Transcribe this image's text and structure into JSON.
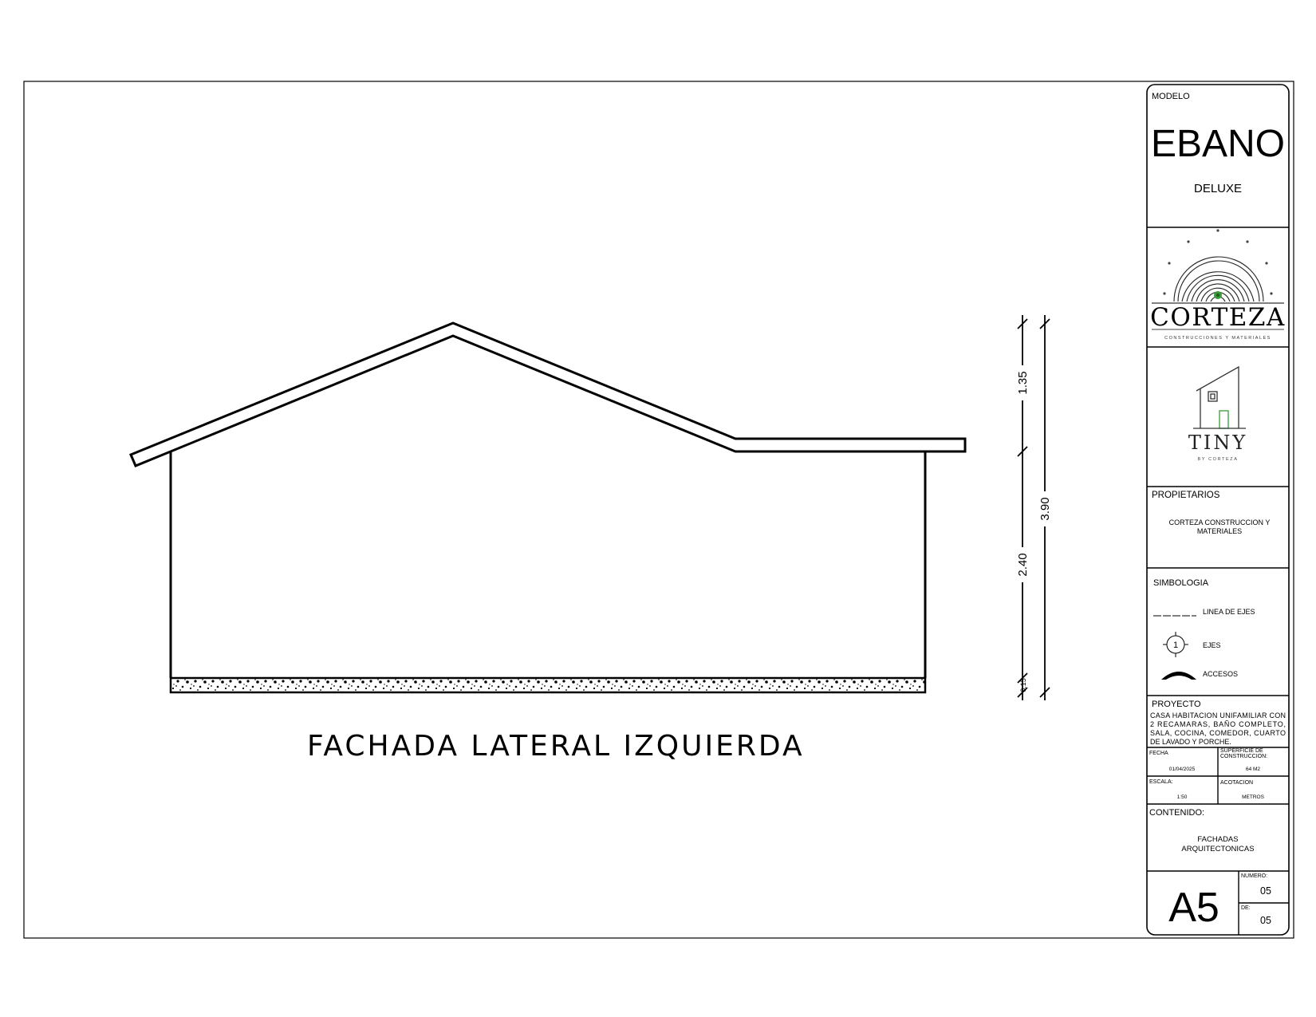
{
  "drawing": {
    "title": "FACHADA LATERAL IZQUIERDA",
    "dimensions": {
      "roof_height": "1.35",
      "wall_height": "2.40",
      "total_height": "3.90",
      "slab_thickness": "0.15"
    }
  },
  "title_block": {
    "modelo_label": "MODELO",
    "model_name": "EBANO",
    "model_variant": "DELUXE",
    "logos": {
      "corteza": {
        "icon": "tree-rings-logo",
        "name": "CORTEZA",
        "tagline": "CONSTRUCCIONES Y MATERIALES"
      },
      "tiny": {
        "icon": "tiny-house-logo",
        "name": "TINY",
        "tagline": "BY CORTEZA"
      }
    },
    "propietarios_label": "PROPIETARIOS",
    "propietarios_line1": "CORTEZA CONSTRUCCION Y",
    "propietarios_line2": "MATERIALES",
    "simbologia_label": "SIMBOLOGIA",
    "symbols": {
      "ejes_line": "LINEA DE EJES",
      "ejes": "EJES",
      "ejes_number": "1",
      "accesos": "ACCESOS"
    },
    "proyecto_label": "PROYECTO",
    "proyecto_lines": [
      "CASA HABITACION UNIFAMILIAR CON",
      "2 RECAMARAS, BAÑO COMPLETO,",
      "SALA, COCINA, COMEDOR, CUARTO",
      "DE LAVADO Y PORCHE."
    ],
    "fecha_label": "FECHA",
    "fecha_value": "01/04/2025",
    "superficie_label_1": "SUPERFICIE DE",
    "superficie_label_2": "CONSTRUCCION:",
    "superficie_value": "64 M2",
    "escala_label": "ESCALA:",
    "escala_value": "1:50",
    "acotacion_label": "ACOTACION",
    "acotacion_value": "METROS",
    "contenido_label": "CONTENIDO:",
    "contenido_line1": "FACHADAS",
    "contenido_line2": "ARQUITECTONICAS",
    "sheet_code": "A5",
    "numero_label": "NUMERO:",
    "numero_value": "05",
    "de_label": "DE:",
    "de_value": "05"
  }
}
